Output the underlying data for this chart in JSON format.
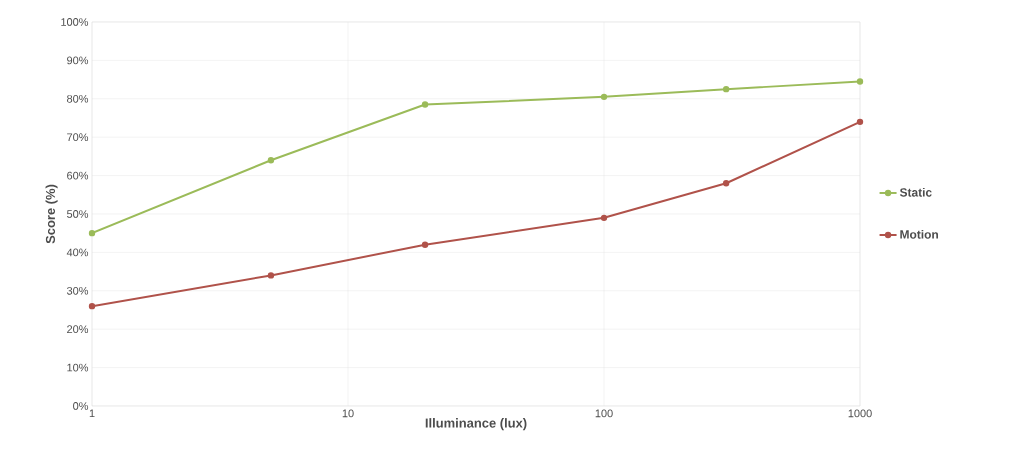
{
  "chart_data": {
    "type": "line",
    "xlabel": "Illuminance (lux)",
    "ylabel": "Score (%)",
    "x": [
      1,
      5,
      20,
      100,
      300,
      1000
    ],
    "series": [
      {
        "name": "Static",
        "color": "#9bbb59",
        "values": [
          45,
          64,
          78.5,
          80.5,
          82.5,
          84.5
        ]
      },
      {
        "name": "Motion",
        "color": "#b0524a",
        "values": [
          26,
          34,
          42,
          49,
          58,
          74
        ]
      }
    ],
    "log": "x",
    "xlim": [
      1,
      1000
    ],
    "xticks": [
      1,
      10,
      100,
      1000
    ],
    "ylim": [
      0,
      100
    ],
    "yticks": [
      {
        "value": 0,
        "label": "0%"
      },
      {
        "value": 10,
        "label": "10%"
      },
      {
        "value": 20,
        "label": "20%"
      },
      {
        "value": 30,
        "label": "30%"
      },
      {
        "value": 40,
        "label": "40%"
      },
      {
        "value": 50,
        "label": "50%"
      },
      {
        "value": 60,
        "label": "60%"
      },
      {
        "value": 70,
        "label": "70%"
      },
      {
        "value": 80,
        "label": "80%"
      },
      {
        "value": 90,
        "label": "90%"
      },
      {
        "value": 100,
        "label": "100%"
      }
    ],
    "grid": true,
    "legend": "right",
    "marker": "circle",
    "line_style": "solid"
  }
}
